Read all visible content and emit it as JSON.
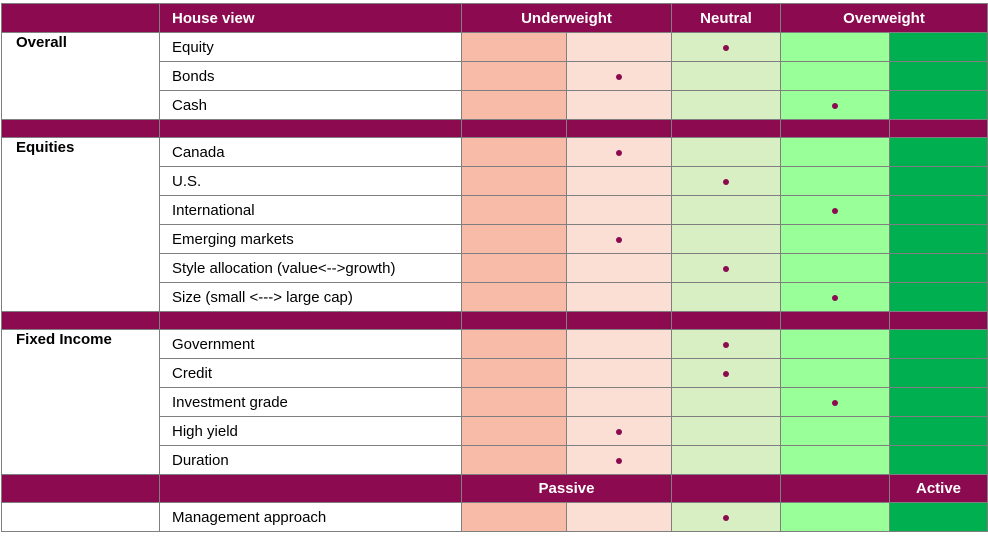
{
  "header": {
    "house_view": "House view",
    "underweight": "Underweight",
    "neutral": "Neutral",
    "overweight": "Overweight"
  },
  "groups": [
    {
      "name": "Overall",
      "rows": [
        {
          "label": "Equity",
          "position": 3
        },
        {
          "label": "Bonds",
          "position": 2
        },
        {
          "label": "Cash",
          "position": 4
        }
      ]
    },
    {
      "name": "Equities",
      "rows": [
        {
          "label": "Canada",
          "position": 2
        },
        {
          "label": "U.S.",
          "position": 3
        },
        {
          "label": "International",
          "position": 4
        },
        {
          "label": "Emerging markets",
          "position": 2
        },
        {
          "label": "Style allocation (value<-->growth)",
          "position": 3
        },
        {
          "label": "Size (small <---> large cap)",
          "position": 4
        }
      ]
    },
    {
      "name": "Fixed Income",
      "rows": [
        {
          "label": "Government",
          "position": 3
        },
        {
          "label": "Credit",
          "position": 3
        },
        {
          "label": "Investment grade",
          "position": 4
        },
        {
          "label": "High yield",
          "position": 2
        },
        {
          "label": "Duration",
          "position": 2
        }
      ]
    }
  ],
  "footer": {
    "passive": "Passive",
    "active": "Active"
  },
  "management": {
    "label": "Management approach",
    "position": 3
  },
  "colors": {
    "header_bg": "#8b0a50",
    "strong_underweight": "#f8bba8",
    "underweight": "#fbdfd5",
    "neutral": "#d8efc4",
    "overweight": "#99ff99",
    "strong_overweight": "#00b050",
    "indicator_dot": "#8b0a50"
  }
}
